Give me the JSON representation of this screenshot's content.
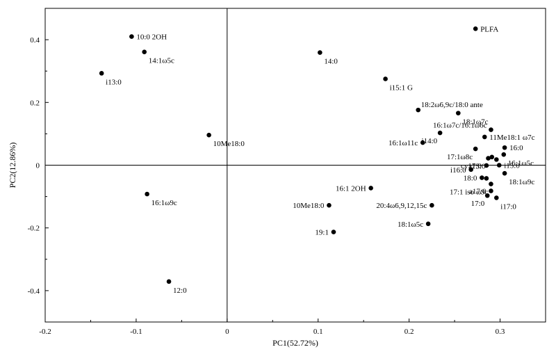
{
  "chart_data": {
    "type": "scatter",
    "xlabel": "PC1(52.72%)",
    "ylabel": "PC2(12.86%)",
    "xlim": [
      -0.2,
      0.35
    ],
    "ylim": [
      -0.5,
      0.5
    ],
    "xticks": [
      "-0.2",
      "-0.1",
      "0",
      "0.1",
      "0.2",
      "0.3"
    ],
    "yticks": [
      "-0.4",
      "-0.2",
      "0",
      "0.2",
      "0.4"
    ],
    "xtick_values": [
      -0.2,
      -0.1,
      0,
      0.1,
      0.2,
      0.3
    ],
    "ytick_values": [
      -0.4,
      -0.2,
      0,
      0.2,
      0.4
    ],
    "grid": false,
    "reference_lines": {
      "x": 0,
      "y": 0
    },
    "points": [
      {
        "label": "PLFA",
        "x": 0.273,
        "y": 0.435,
        "anchor": "right"
      },
      {
        "label": "10:0 2OH",
        "x": -0.105,
        "y": 0.41,
        "anchor": "right"
      },
      {
        "label": "14:1ω5c",
        "x": -0.091,
        "y": 0.361,
        "anchor": "below-right"
      },
      {
        "label": "i13:0",
        "x": -0.138,
        "y": 0.293,
        "anchor": "below-right"
      },
      {
        "label": "14:0",
        "x": 0.102,
        "y": 0.359,
        "anchor": "below-right"
      },
      {
        "label": "i15:1 G",
        "x": 0.174,
        "y": 0.275,
        "anchor": "below-right"
      },
      {
        "label": "18:2ω6,9c/18:0 ante",
        "x": 0.21,
        "y": 0.176,
        "anchor": "above-right"
      },
      {
        "label": "18:1ω7c",
        "x": 0.254,
        "y": 0.166,
        "anchor": "below-right"
      },
      {
        "label": "16:1ω7c/16:1ω6c",
        "x": 0.29,
        "y": 0.113,
        "anchor": "above-left"
      },
      {
        "label": "10Me18:0",
        "x": -0.02,
        "y": 0.096,
        "anchor": "below-right"
      },
      {
        "label": "i14:0",
        "x": 0.234,
        "y": 0.103,
        "anchor": "below-left"
      },
      {
        "label": "11Me18:1 ω7c",
        "x": 0.283,
        "y": 0.09,
        "anchor": "right"
      },
      {
        "label": "16:1ω11c",
        "x": 0.215,
        "y": 0.072,
        "anchor": "left"
      },
      {
        "label": "17:1ω8c",
        "x": 0.273,
        "y": 0.052,
        "anchor": "below-left"
      },
      {
        "label": "16:0",
        "x": 0.305,
        "y": 0.056,
        "anchor": "right"
      },
      {
        "label": "16:1ω5c",
        "x": 0.304,
        "y": 0.034,
        "anchor": "below-right"
      },
      {
        "label": "a15:0",
        "x": 0.287,
        "y": 0.022,
        "anchor": "below-left"
      },
      {
        "label": "",
        "x": 0.291,
        "y": 0.026,
        "anchor": "right"
      },
      {
        "label": "",
        "x": 0.296,
        "y": 0.018,
        "anchor": "right"
      },
      {
        "label": "i15:0",
        "x": 0.299,
        "y": 0.0,
        "anchor": "right"
      },
      {
        "label": "cy17:0",
        "x": 0.285,
        "y": -0.001,
        "anchor": "left"
      },
      {
        "label": "i16:0",
        "x": 0.268,
        "y": -0.014,
        "anchor": "left"
      },
      {
        "label": "18:1ω9c",
        "x": 0.305,
        "y": -0.026,
        "anchor": "below-right"
      },
      {
        "label": "18:0",
        "x": 0.28,
        "y": -0.04,
        "anchor": "left"
      },
      {
        "label": "",
        "x": 0.285,
        "y": -0.042,
        "anchor": "right"
      },
      {
        "label": "17:1 iso ω9c",
        "x": 0.29,
        "y": -0.06,
        "anchor": "below-left"
      },
      {
        "label": "a17:0",
        "x": 0.29,
        "y": -0.082,
        "anchor": "left"
      },
      {
        "label": "17:0",
        "x": 0.286,
        "y": -0.097,
        "anchor": "below-left"
      },
      {
        "label": "i17:0",
        "x": 0.296,
        "y": -0.104,
        "anchor": "below-right"
      },
      {
        "label": "16:1ω9c",
        "x": -0.088,
        "y": -0.092,
        "anchor": "below-right"
      },
      {
        "label": "16:1 2OH",
        "x": 0.158,
        "y": -0.073,
        "anchor": "left"
      },
      {
        "label": "10Me18:0",
        "x": 0.112,
        "y": -0.128,
        "anchor": "left"
      },
      {
        "label": "20:4ω6,9,12,15c",
        "x": 0.225,
        "y": -0.128,
        "anchor": "left"
      },
      {
        "label": "18:1ω5c",
        "x": 0.221,
        "y": -0.187,
        "anchor": "left"
      },
      {
        "label": "19:1",
        "x": 0.117,
        "y": -0.213,
        "anchor": "left"
      },
      {
        "label": "12:0",
        "x": -0.064,
        "y": -0.371,
        "anchor": "below-right"
      }
    ]
  }
}
